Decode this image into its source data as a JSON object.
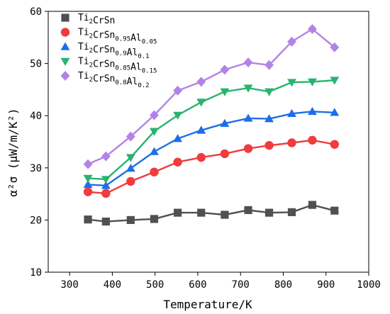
{
  "chart_data": {
    "type": "line",
    "xlabel": "Temperature/K",
    "ylabel": "α²σ (μW/m/K²)",
    "xlim": [
      250,
      1000
    ],
    "ylim": [
      10,
      60
    ],
    "xticks": [
      300,
      400,
      500,
      600,
      700,
      800,
      900,
      1000
    ],
    "yticks": [
      10,
      20,
      30,
      40,
      50,
      60
    ],
    "grid": false,
    "legend_position": "top-left",
    "x": [
      343,
      385,
      443,
      498,
      553,
      608,
      663,
      718,
      767,
      820,
      868,
      920
    ],
    "series": [
      {
        "name": "Ti2CrSn",
        "legend_parts": [
          [
            "Ti",
            ""
          ],
          [
            "2",
            "sub"
          ],
          [
            "CrSn",
            ""
          ]
        ],
        "marker": "square",
        "color": "#505050",
        "values": [
          20.1,
          19.7,
          20.0,
          20.2,
          21.4,
          21.4,
          21.0,
          21.9,
          21.4,
          21.5,
          22.9,
          21.8
        ]
      },
      {
        "name": "Ti2CrSn0.95Al0.05",
        "legend_parts": [
          [
            "Ti",
            ""
          ],
          [
            "2",
            "sub"
          ],
          [
            "CrSn",
            ""
          ],
          [
            "0.95",
            "sub"
          ],
          [
            "Al",
            ""
          ],
          [
            "0.05",
            "sub"
          ]
        ],
        "marker": "circle",
        "color": "#f03c3c",
        "values": [
          25.4,
          25.1,
          27.4,
          29.2,
          31.1,
          32.0,
          32.7,
          33.7,
          34.3,
          34.8,
          35.3,
          34.5
        ]
      },
      {
        "name": "Ti2CrSn0.9Al0.1",
        "legend_parts": [
          [
            "Ti",
            ""
          ],
          [
            "2",
            "sub"
          ],
          [
            "CrSn",
            ""
          ],
          [
            "0.9",
            "sub"
          ],
          [
            "Al",
            ""
          ],
          [
            "0.1",
            "sub"
          ]
        ],
        "marker": "triangle-up",
        "color": "#1e6ee6",
        "values": [
          26.8,
          26.6,
          29.9,
          33.1,
          35.6,
          37.2,
          38.5,
          39.5,
          39.4,
          40.4,
          40.8,
          40.6
        ]
      },
      {
        "name": "Ti2CrSn0.85Al0.15",
        "legend_parts": [
          [
            "Ti",
            ""
          ],
          [
            "2",
            "sub"
          ],
          [
            "CrSn",
            ""
          ],
          [
            "0.85",
            "sub"
          ],
          [
            "Al",
            ""
          ],
          [
            "0.15",
            "sub"
          ]
        ],
        "marker": "triangle-down",
        "color": "#28b46e",
        "values": [
          28.0,
          27.8,
          32.0,
          37.0,
          40.1,
          42.6,
          44.6,
          45.3,
          44.6,
          46.4,
          46.5,
          46.8
        ]
      },
      {
        "name": "Ti2CrSn0.8Al0.2",
        "legend_parts": [
          [
            "Ti",
            ""
          ],
          [
            "2",
            "sub"
          ],
          [
            "CrSn",
            ""
          ],
          [
            "0.8",
            "sub"
          ],
          [
            "Al",
            ""
          ],
          [
            "0.2",
            "sub"
          ]
        ],
        "marker": "diamond",
        "color": "#b482e6",
        "values": [
          30.7,
          32.2,
          36.0,
          40.1,
          44.8,
          46.5,
          48.8,
          50.2,
          49.7,
          54.2,
          56.6,
          53.1
        ]
      }
    ]
  }
}
